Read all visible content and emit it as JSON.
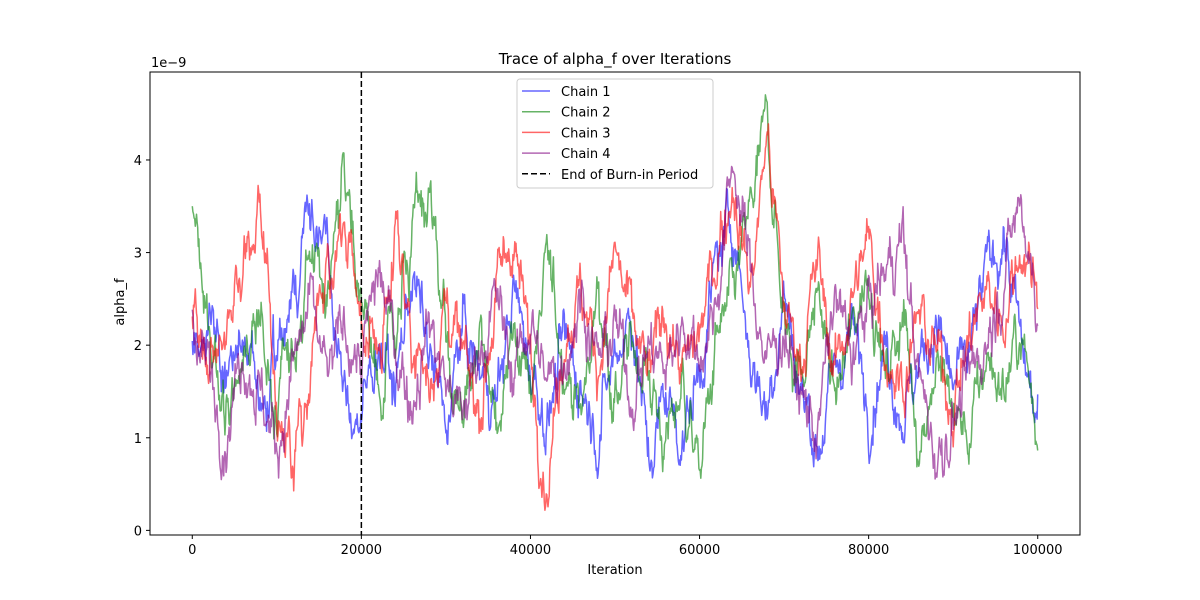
{
  "chart_data": {
    "type": "line",
    "title": "Trace of alpha_f over Iterations",
    "xlabel": "Iteration",
    "ylabel": "alpha_f",
    "y_scale_label": "1e−9",
    "xlim": [
      -5000,
      105000
    ],
    "ylim": [
      -0.05,
      4.95
    ],
    "x_ticks": [
      0,
      20000,
      40000,
      60000,
      80000,
      100000
    ],
    "x_tick_labels": [
      "0",
      "20000",
      "40000",
      "60000",
      "80000",
      "100000"
    ],
    "y_ticks": [
      0,
      1,
      2,
      3,
      4
    ],
    "y_tick_labels": [
      "0",
      "1",
      "2",
      "3",
      "4"
    ],
    "grid": false,
    "legend_position": "top-center",
    "burn_in": {
      "x": 20000,
      "label": "End of Burn-in Period",
      "color": "#000000"
    },
    "series": [
      {
        "name": "Chain 1",
        "color": "#0000ff",
        "x": [
          0,
          2000,
          4000,
          6000,
          8000,
          10000,
          12000,
          14000,
          16000,
          18000,
          20000,
          22000,
          24000,
          26000,
          28000,
          30000,
          32000,
          34000,
          36000,
          38000,
          40000,
          42000,
          44000,
          46000,
          48000,
          50000,
          52000,
          54000,
          56000,
          58000,
          60000,
          62000,
          64000,
          66000,
          68000,
          70000,
          72000,
          74000,
          76000,
          78000,
          80000,
          82000,
          84000,
          86000,
          88000,
          90000,
          92000,
          94000,
          96000,
          98000,
          100000
        ],
        "values": [
          1.9,
          2.4,
          1.6,
          2.1,
          1.3,
          1.8,
          2.7,
          3.6,
          2.9,
          1.4,
          1.2,
          2.1,
          1.5,
          2.8,
          1.9,
          1.1,
          2.2,
          1.7,
          1.4,
          2.6,
          1.8,
          1.2,
          2.0,
          1.6,
          1.1,
          1.9,
          2.4,
          0.7,
          1.5,
          1.0,
          1.7,
          2.9,
          3.4,
          1.9,
          1.3,
          2.6,
          1.5,
          0.9,
          1.7,
          2.2,
          1.4,
          2.0,
          1.3,
          1.8,
          2.3,
          1.5,
          1.9,
          2.8,
          3.2,
          2.0,
          1.1
        ]
      },
      {
        "name": "Chain 2",
        "color": "#008000",
        "x": [
          0,
          2000,
          4000,
          6000,
          8000,
          10000,
          12000,
          14000,
          16000,
          18000,
          20000,
          22000,
          24000,
          26000,
          28000,
          30000,
          32000,
          34000,
          36000,
          38000,
          40000,
          42000,
          44000,
          46000,
          48000,
          50000,
          52000,
          54000,
          56000,
          58000,
          60000,
          62000,
          64000,
          66000,
          68000,
          70000,
          72000,
          74000,
          76000,
          78000,
          80000,
          82000,
          84000,
          86000,
          88000,
          90000,
          92000,
          94000,
          96000,
          98000,
          100000
        ],
        "values": [
          3.6,
          2.1,
          1.2,
          1.8,
          2.3,
          1.4,
          2.0,
          3.1,
          2.4,
          4.2,
          2.5,
          1.6,
          2.2,
          3.0,
          3.7,
          1.9,
          1.3,
          2.1,
          1.0,
          2.4,
          1.5,
          2.8,
          1.9,
          1.2,
          2.6,
          1.4,
          2.0,
          1.7,
          0.9,
          1.6,
          0.6,
          2.0,
          2.5,
          3.4,
          4.4,
          2.2,
          1.7,
          2.6,
          1.4,
          2.1,
          2.9,
          1.6,
          2.4,
          1.0,
          1.8,
          1.3,
          1.0,
          1.9,
          1.5,
          2.2,
          1.0
        ]
      },
      {
        "name": "Chain 3",
        "color": "#ff0000",
        "x": [
          0,
          2000,
          4000,
          6000,
          8000,
          10000,
          12000,
          14000,
          16000,
          18000,
          20000,
          22000,
          24000,
          26000,
          28000,
          30000,
          32000,
          34000,
          36000,
          38000,
          40000,
          42000,
          44000,
          46000,
          48000,
          50000,
          52000,
          54000,
          56000,
          58000,
          60000,
          62000,
          64000,
          66000,
          68000,
          70000,
          72000,
          74000,
          76000,
          78000,
          80000,
          82000,
          84000,
          86000,
          88000,
          90000,
          92000,
          94000,
          96000,
          98000,
          100000
        ],
        "values": [
          2.4,
          1.5,
          2.2,
          2.9,
          3.6,
          1.4,
          0.8,
          1.9,
          2.7,
          3.2,
          2.3,
          1.7,
          3.5,
          2.1,
          1.6,
          2.5,
          1.8,
          1.3,
          2.6,
          3.2,
          1.9,
          0.5,
          2.2,
          2.6,
          1.8,
          3.0,
          2.2,
          1.6,
          2.4,
          1.7,
          2.1,
          3.0,
          3.8,
          2.6,
          4.3,
          2.4,
          1.9,
          2.9,
          1.7,
          2.5,
          3.1,
          2.0,
          1.6,
          2.3,
          1.9,
          1.4,
          2.1,
          2.6,
          2.3,
          3.1,
          2.7
        ]
      },
      {
        "name": "Chain 4",
        "color": "#800080",
        "x": [
          0,
          2000,
          4000,
          6000,
          8000,
          10000,
          12000,
          14000,
          16000,
          18000,
          20000,
          22000,
          24000,
          26000,
          28000,
          30000,
          32000,
          34000,
          36000,
          38000,
          40000,
          42000,
          44000,
          46000,
          48000,
          50000,
          52000,
          54000,
          56000,
          58000,
          60000,
          62000,
          64000,
          66000,
          68000,
          70000,
          72000,
          74000,
          76000,
          78000,
          80000,
          82000,
          84000,
          86000,
          88000,
          90000,
          92000,
          94000,
          96000,
          98000,
          100000
        ],
        "values": [
          2.2,
          1.7,
          1.1,
          2.0,
          1.5,
          0.9,
          1.8,
          2.4,
          1.6,
          2.2,
          1.8,
          2.8,
          2.0,
          1.4,
          2.3,
          1.6,
          1.2,
          2.0,
          2.5,
          1.7,
          2.3,
          1.5,
          1.9,
          2.6,
          1.8,
          2.2,
          1.5,
          2.0,
          1.7,
          2.3,
          1.9,
          2.5,
          4.0,
          2.8,
          1.8,
          2.2,
          1.4,
          1.1,
          2.5,
          1.9,
          2.4,
          2.8,
          3.2,
          1.6,
          0.8,
          1.2,
          1.6,
          2.1,
          2.8,
          3.6,
          2.4
        ]
      }
    ]
  }
}
